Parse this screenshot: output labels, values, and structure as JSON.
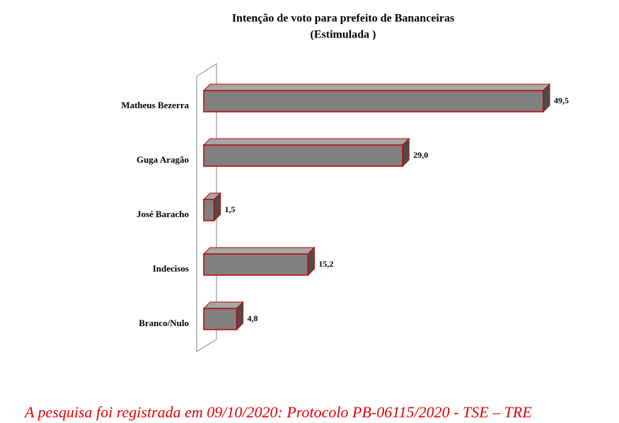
{
  "chart_data": {
    "type": "bar",
    "orientation": "horizontal",
    "title": "Intenção de voto para prefeito de Bananceiras",
    "subtitle": "(Estimulada )",
    "categories": [
      "Matheus Bezerra",
      "Guga Aragão",
      "José Baracho",
      "Indecisos",
      "Branco/Nulo"
    ],
    "values": [
      49.5,
      29.0,
      1.5,
      15.2,
      4.8
    ],
    "value_labels": [
      "49,5",
      "29,0",
      "1,5",
      "15,2",
      "4,8"
    ],
    "color": "#808080"
  },
  "footer": "A pesquisa foi registrada em 09/10/2020: Protocolo PB-06115/2020 - TSE – TRE"
}
